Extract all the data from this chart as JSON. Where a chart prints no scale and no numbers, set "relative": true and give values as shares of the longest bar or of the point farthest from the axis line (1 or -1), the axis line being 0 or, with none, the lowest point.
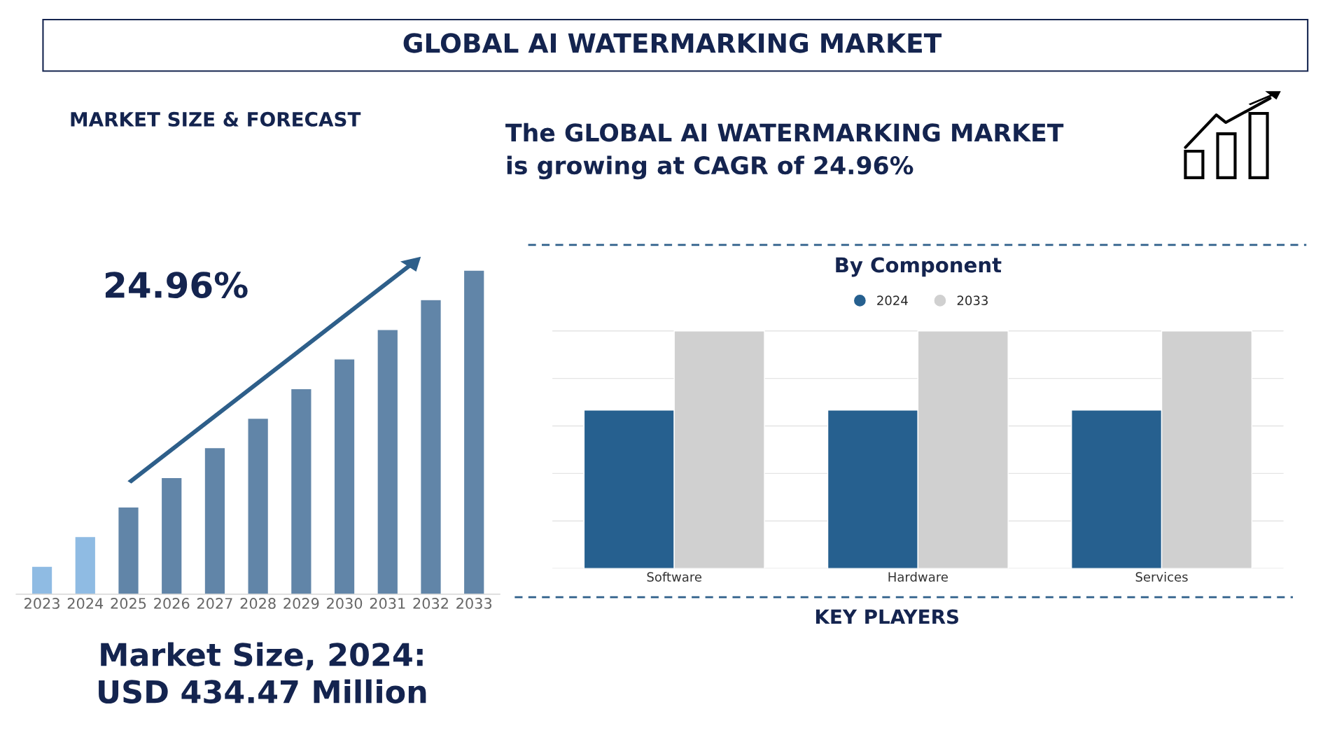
{
  "chart_data": [
    {
      "type": "other",
      "title": "GLOBAL AI WATERMARKING MARKET",
      "annotations": [
        "The GLOBAL AI WATERMARKING MARKET\nis growing at CAGR of 24.96%",
        "KEY PLAYERS"
      ]
    },
    {
      "type": "bar",
      "title": "MARKET SIZE & FORECAST",
      "relative": true,
      "grid": false,
      "categories": [
        "2023",
        "2024",
        "2025",
        "2026",
        "2027",
        "2028",
        "2029",
        "2030",
        "2031",
        "2032",
        "2033"
      ],
      "values": [
        0.086,
        0.178,
        0.269,
        0.36,
        0.452,
        0.543,
        0.634,
        0.726,
        0.817,
        0.909,
        1
      ],
      "colors": [
        "#8fbbe3",
        "#8fbbe3",
        "#6185a8",
        "#6185a8",
        "#6185a8",
        "#6185a8",
        "#6185a8",
        "#6185a8",
        "#6185a8",
        "#6185a8",
        "#6185a8"
      ],
      "annotations": [
        "24.96%",
        "Market Size, 2024:\nUSD 434.47 Million"
      ]
    },
    {
      "type": "bar",
      "title": "By Component",
      "relative": true,
      "grid": "y",
      "legend": "top",
      "categories": [
        "Software",
        "Hardware",
        "Services"
      ],
      "series": [
        {
          "name": "2024",
          "color": "#26608f",
          "values": [
            0.667,
            0.667,
            0.667
          ]
        },
        {
          "name": "2033",
          "color": "#d0d0d0",
          "values": [
            1,
            1,
            1
          ]
        }
      ]
    }
  ]
}
